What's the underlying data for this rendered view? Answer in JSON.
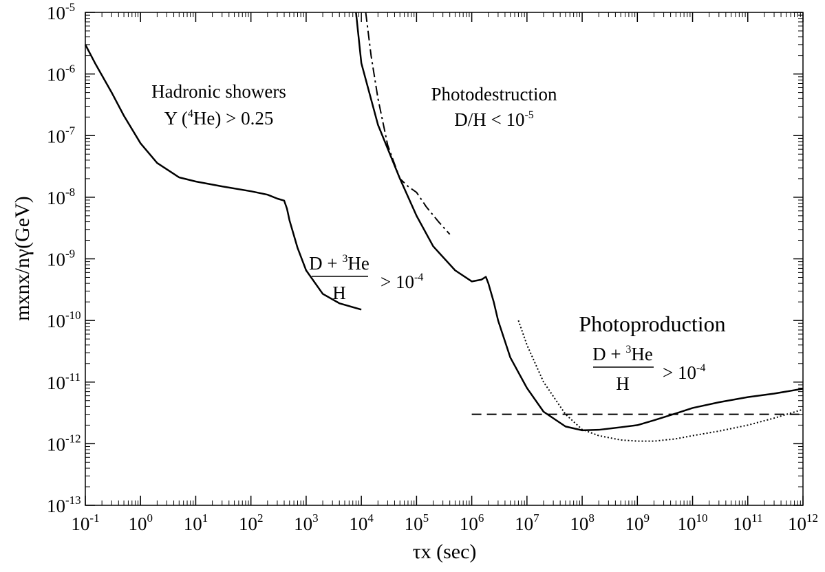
{
  "chart_data": {
    "type": "line",
    "title": "",
    "xlabel": "τx (sec)",
    "ylabel": "mxnx/nγ(GeV)",
    "x_scale": "log",
    "y_scale": "log",
    "xlim": [
      0.1,
      1000000000000.0
    ],
    "ylim": [
      1e-13,
      1e-05
    ],
    "grid": false,
    "x_ticks": [
      {
        "base": "10",
        "exp": "-1"
      },
      {
        "base": "10",
        "exp": "0"
      },
      {
        "base": "10",
        "exp": "1"
      },
      {
        "base": "10",
        "exp": "2"
      },
      {
        "base": "10",
        "exp": "3"
      },
      {
        "base": "10",
        "exp": "4"
      },
      {
        "base": "10",
        "exp": "5"
      },
      {
        "base": "10",
        "exp": "6"
      },
      {
        "base": "10",
        "exp": "7"
      },
      {
        "base": "10",
        "exp": "8"
      },
      {
        "base": "10",
        "exp": "9"
      },
      {
        "base": "10",
        "exp": "10"
      },
      {
        "base": "10",
        "exp": "11"
      },
      {
        "base": "10",
        "exp": "12"
      }
    ],
    "y_ticks": [
      {
        "base": "10",
        "exp": "-13"
      },
      {
        "base": "10",
        "exp": "-12"
      },
      {
        "base": "10",
        "exp": "-11"
      },
      {
        "base": "10",
        "exp": "-10"
      },
      {
        "base": "10",
        "exp": "-9"
      },
      {
        "base": "10",
        "exp": "-8"
      },
      {
        "base": "10",
        "exp": "-7"
      },
      {
        "base": "10",
        "exp": "-6"
      },
      {
        "base": "10",
        "exp": "-5"
      }
    ],
    "series": [
      {
        "style": "solid",
        "x": [
          0.1,
          0.15,
          0.3,
          0.5,
          1,
          2,
          5,
          10,
          30,
          100,
          200,
          300,
          400,
          450,
          500,
          700,
          1000,
          2000,
          4000,
          10000
        ],
        "y": [
          3e-06,
          1.5e-06,
          5e-07,
          2.1e-07,
          7.5e-08,
          3.6e-08,
          2.1e-08,
          1.8e-08,
          1.5e-08,
          1.25e-08,
          1.1e-08,
          9.5e-09,
          8.8e-09,
          6.5e-09,
          4.2e-09,
          1.5e-09,
          6.5e-10,
          2.7e-10,
          1.9e-10,
          1.5e-10
        ]
      },
      {
        "style": "solid",
        "x": [
          8000,
          10000,
          20000,
          50000,
          100000,
          200000,
          500000,
          1000000,
          1500000,
          1800000,
          2000000,
          2500000,
          3000000,
          5000000,
          10000000,
          20000000,
          50000000,
          100000000,
          200000000,
          500000000,
          1000000000,
          2000000000,
          5000000000,
          10000000000,
          30000000000,
          100000000000,
          300000000000,
          1000000000000
        ],
        "y": [
          1e-05,
          1.5e-06,
          1.5e-07,
          2e-08,
          5e-09,
          1.6e-09,
          6.5e-10,
          4.3e-10,
          4.6e-10,
          5.1e-10,
          4e-10,
          2e-10,
          1e-10,
          2.5e-11,
          8e-12,
          3.3e-12,
          1.9e-12,
          1.65e-12,
          1.68e-12,
          1.85e-12,
          2e-12,
          2.4e-12,
          3.1e-12,
          3.8e-12,
          4.7e-12,
          5.7e-12,
          6.5e-12,
          7.8e-12
        ]
      },
      {
        "style": "dash-dot",
        "x": [
          12000,
          15000,
          20000,
          30000,
          50000,
          70000,
          100000,
          150000,
          250000,
          400000
        ],
        "y": [
          1e-05,
          2e-06,
          4e-07,
          7e-08,
          2e-08,
          1.5e-08,
          1.2e-08,
          7e-09,
          4e-09,
          2.5e-09
        ]
      },
      {
        "style": "dotted",
        "x": [
          7000000,
          10000000,
          20000000,
          50000000,
          100000000,
          200000000,
          500000000,
          1000000000,
          2000000000,
          5000000000,
          10000000000,
          30000000000,
          100000000000,
          300000000000,
          1000000000000
        ],
        "y": [
          1e-10,
          4e-11,
          1e-11,
          3e-12,
          1.7e-12,
          1.35e-12,
          1.15e-12,
          1.1e-12,
          1.1e-12,
          1.2e-12,
          1.35e-12,
          1.6e-12,
          2e-12,
          2.6e-12,
          3.6e-12
        ]
      },
      {
        "style": "dashed",
        "x": [
          1000000,
          1000000000000
        ],
        "y": [
          3e-12,
          3e-12
        ]
      }
    ],
    "annotations": {
      "hadronic_title": "Hadronic showers",
      "hadronic_cond_pre": "Y (",
      "hadronic_cond_sup": "4",
      "hadronic_cond_post": "He) > 0.25",
      "photodestruction_title": "Photodestruction",
      "photodestruction_cond": "D/H < 10",
      "photodestruction_exp": "-5",
      "frac1_numer_pre": "D + ",
      "frac1_numer_sup": "3",
      "frac1_numer_post": "He",
      "frac1_denom": "H",
      "frac1_rhs": "> 10",
      "frac1_rhs_exp": "-4",
      "photoproduction_title": "Photoproduction",
      "frac2_numer_pre": "D + ",
      "frac2_numer_sup": "3",
      "frac2_numer_post": "He",
      "frac2_denom": "H",
      "frac2_rhs": "> 10",
      "frac2_rhs_exp": "-4"
    }
  }
}
